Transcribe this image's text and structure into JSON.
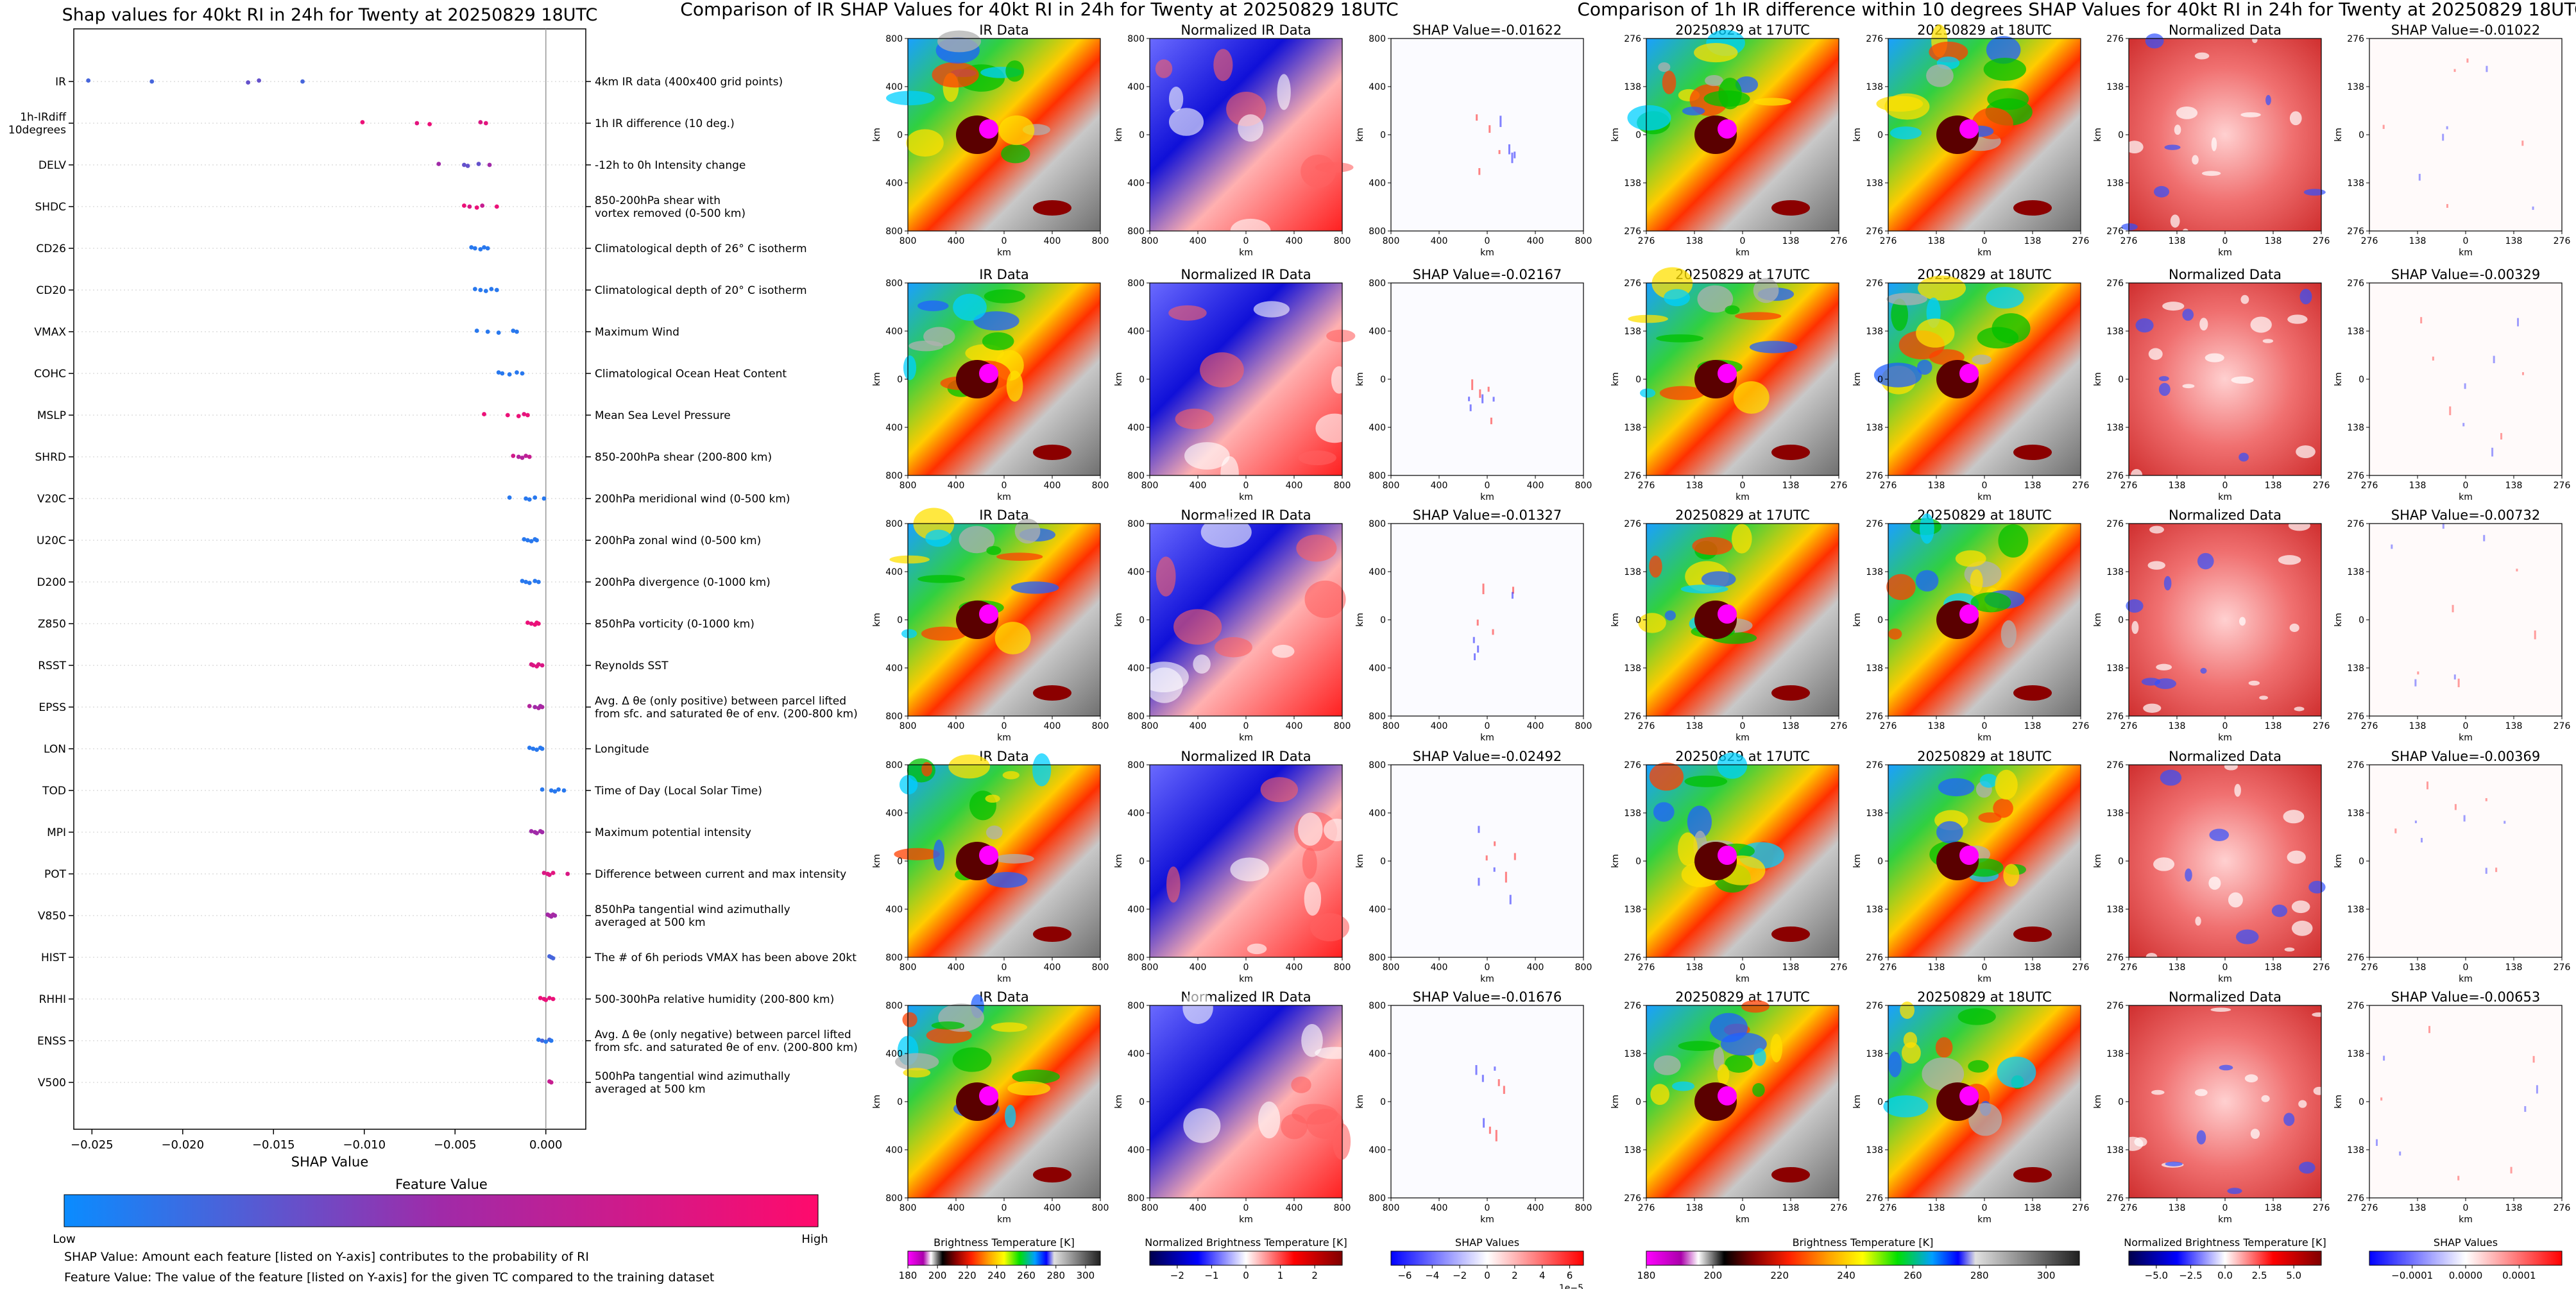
{
  "chart_data": [
    {
      "type": "scatter",
      "title": "Shap values for 40kt RI in 24h for Twenty at 20250829 18UTC",
      "xlabel": "SHAP Value",
      "xlim": [
        -0.026,
        0.0022
      ],
      "xticks": [
        -0.025,
        -0.02,
        -0.015,
        -0.01,
        -0.005,
        0.0
      ],
      "xtick_labels": [
        "−0.025",
        "−0.020",
        "−0.015",
        "−0.010",
        "−0.005",
        "0.000"
      ],
      "colorbar_title": "Feature Value",
      "colorbar_low": "Low",
      "colorbar_high": "High",
      "colors": {
        "low": "#0a8cff",
        "mid": "#a02aa8",
        "high": "#ff0a6c"
      },
      "features": [
        {
          "name": "IR",
          "desc": [
            "4km IR data (400x400 grid points)"
          ],
          "points": [
            [
              -0.0252,
              0.2
            ],
            [
              -0.0217,
              0.2
            ],
            [
              -0.0164,
              0.3
            ],
            [
              -0.0158,
              0.3
            ],
            [
              -0.0134,
              0.2
            ]
          ]
        },
        {
          "name": [
            "1h-IRdiff",
            "10degrees"
          ],
          "desc": [
            "1h IR difference (10 deg.)"
          ],
          "points": [
            [
              -0.0101,
              0.9
            ],
            [
              -0.0071,
              0.85
            ],
            [
              -0.0064,
              0.9
            ],
            [
              -0.0036,
              0.8
            ],
            [
              -0.0033,
              0.85
            ]
          ]
        },
        {
          "name": "DELV",
          "desc": [
            "-12h to 0h Intensity change"
          ],
          "points": [
            [
              -0.0059,
              0.5
            ],
            [
              -0.0045,
              0.3
            ],
            [
              -0.0043,
              0.3
            ],
            [
              -0.0037,
              0.3
            ],
            [
              -0.0031,
              0.5
            ]
          ]
        },
        {
          "name": "SHDC",
          "desc": [
            "850-200hPa shear with",
            "vortex removed (0-500 km)"
          ],
          "points": [
            [
              -0.0045,
              0.9
            ],
            [
              -0.0042,
              0.8
            ],
            [
              -0.0038,
              0.9
            ],
            [
              -0.0035,
              0.7
            ],
            [
              -0.0027,
              0.9
            ]
          ]
        },
        {
          "name": "CD26",
          "desc": [
            "Climatological depth of 26° C isotherm"
          ],
          "points": [
            [
              -0.0041,
              0.1
            ],
            [
              -0.0039,
              0.1
            ],
            [
              -0.0036,
              0.1
            ],
            [
              -0.0034,
              0.1
            ],
            [
              -0.0032,
              0.1
            ]
          ]
        },
        {
          "name": "CD20",
          "desc": [
            "Climatological depth of 20° C isotherm"
          ],
          "points": [
            [
              -0.0039,
              0.1
            ],
            [
              -0.0036,
              0.1
            ],
            [
              -0.0033,
              0.1
            ],
            [
              -0.003,
              0.1
            ],
            [
              -0.0027,
              0.1
            ]
          ]
        },
        {
          "name": "VMAX",
          "desc": [
            "Maximum Wind"
          ],
          "points": [
            [
              -0.0038,
              0.1
            ],
            [
              -0.0032,
              0.1
            ],
            [
              -0.0026,
              0.1
            ],
            [
              -0.0018,
              0.1
            ],
            [
              -0.0016,
              0.1
            ]
          ]
        },
        {
          "name": "COHC",
          "desc": [
            "Climatological Ocean Heat Content"
          ],
          "points": [
            [
              -0.0026,
              0.1
            ],
            [
              -0.0024,
              0.1
            ],
            [
              -0.002,
              0.1
            ],
            [
              -0.0016,
              0.1
            ],
            [
              -0.0013,
              0.1
            ]
          ]
        },
        {
          "name": "MSLP",
          "desc": [
            "Mean Sea Level Pressure"
          ],
          "points": [
            [
              -0.0034,
              0.9
            ],
            [
              -0.0021,
              0.9
            ],
            [
              -0.0015,
              0.9
            ],
            [
              -0.0012,
              0.85
            ],
            [
              -0.001,
              0.9
            ]
          ]
        },
        {
          "name": "SHRD",
          "desc": [
            "850-200hPa shear (200-800 km)"
          ],
          "points": [
            [
              -0.0018,
              0.75
            ],
            [
              -0.0015,
              0.6
            ],
            [
              -0.0013,
              0.6
            ],
            [
              -0.0011,
              0.65
            ],
            [
              -0.0009,
              0.7
            ]
          ]
        },
        {
          "name": "V20C",
          "desc": [
            "200hPa meridional wind (0-500 km)"
          ],
          "points": [
            [
              -0.002,
              0.1
            ],
            [
              -0.0011,
              0.1
            ],
            [
              -0.0009,
              0.1
            ],
            [
              -0.0006,
              0.1
            ],
            [
              -0.0001,
              0.1
            ]
          ]
        },
        {
          "name": "U20C",
          "desc": [
            "200hPa zonal wind (0-500 km)"
          ],
          "points": [
            [
              -0.0012,
              0.1
            ],
            [
              -0.001,
              0.1
            ],
            [
              -0.0008,
              0.1
            ],
            [
              -0.0006,
              0.1
            ],
            [
              -0.0005,
              0.1
            ]
          ]
        },
        {
          "name": "D200",
          "desc": [
            "200hPa divergence (0-1000 km)"
          ],
          "points": [
            [
              -0.0013,
              0.1
            ],
            [
              -0.0011,
              0.1
            ],
            [
              -0.0009,
              0.1
            ],
            [
              -0.0006,
              0.1
            ],
            [
              -0.0004,
              0.1
            ]
          ]
        },
        {
          "name": "Z850",
          "desc": [
            "850hPa vorticity (0-1000 km)"
          ],
          "points": [
            [
              -0.001,
              0.9
            ],
            [
              -0.0008,
              0.85
            ],
            [
              -0.0006,
              0.9
            ],
            [
              -0.0005,
              0.9
            ],
            [
              -0.0004,
              0.9
            ]
          ]
        },
        {
          "name": "RSST",
          "desc": [
            "Reynolds SST"
          ],
          "points": [
            [
              -0.0008,
              0.8
            ],
            [
              -0.0007,
              0.8
            ],
            [
              -0.0005,
              0.85
            ],
            [
              -0.0004,
              0.8
            ],
            [
              -0.0002,
              0.8
            ]
          ]
        },
        {
          "name": "EPSS",
          "desc": [
            "Avg. Δ θe (only positive) between parcel lifted",
            "from sfc. and saturated θe of env. (200-800 km)"
          ],
          "points": [
            [
              -0.0009,
              0.6
            ],
            [
              -0.0006,
              0.5
            ],
            [
              -0.0004,
              0.55
            ],
            [
              -0.0003,
              0.5
            ],
            [
              -0.0002,
              0.55
            ]
          ]
        },
        {
          "name": "LON",
          "desc": [
            "Longitude"
          ],
          "points": [
            [
              -0.0009,
              0.1
            ],
            [
              -0.0007,
              0.1
            ],
            [
              -0.0005,
              0.1
            ],
            [
              -0.0003,
              0.1
            ],
            [
              -0.0002,
              0.1
            ]
          ]
        },
        {
          "name": "TOD",
          "desc": [
            "Time of Day (Local Solar Time)"
          ],
          "points": [
            [
              -0.0002,
              0.1
            ],
            [
              0.0003,
              0.1
            ],
            [
              0.0005,
              0.1
            ],
            [
              0.0007,
              0.1
            ],
            [
              0.001,
              0.1
            ]
          ]
        },
        {
          "name": "MPI",
          "desc": [
            "Maximum potential intensity"
          ],
          "points": [
            [
              -0.0008,
              0.5
            ],
            [
              -0.0006,
              0.5
            ],
            [
              -0.0005,
              0.5
            ],
            [
              -0.0003,
              0.5
            ],
            [
              -0.0002,
              0.5
            ]
          ]
        },
        {
          "name": "POT",
          "desc": [
            "Difference between current and max intensity"
          ],
          "points": [
            [
              -0.0001,
              0.8
            ],
            [
              0.0001,
              0.85
            ],
            [
              0.0002,
              0.8
            ],
            [
              0.0004,
              0.85
            ],
            [
              0.0012,
              0.8
            ]
          ]
        },
        {
          "name": "V850",
          "desc": [
            "850hPa tangential wind azimuthally",
            "averaged at 500 km"
          ],
          "points": [
            [
              0.0001,
              0.5
            ],
            [
              0.0002,
              0.55
            ],
            [
              0.0003,
              0.5
            ],
            [
              0.0004,
              0.55
            ],
            [
              0.0005,
              0.5
            ]
          ]
        },
        {
          "name": "HIST",
          "desc": [
            "The # of 6h periods VMAX has been above 20kt"
          ],
          "points": [
            [
              0.0002,
              0.2
            ],
            [
              0.0003,
              0.2
            ],
            [
              0.0004,
              0.2
            ]
          ]
        },
        {
          "name": "RHHI",
          "desc": [
            "500-300hPa relative humidity (200-800 km)"
          ],
          "points": [
            [
              -0.0003,
              0.9
            ],
            [
              -0.0001,
              0.85
            ],
            [
              0.0,
              0.9
            ],
            [
              0.0002,
              0.85
            ],
            [
              0.0004,
              0.9
            ]
          ]
        },
        {
          "name": "ENSS",
          "desc": [
            "Avg. Δ θe (only negative) between parcel lifted",
            "from sfc. and saturated θe of env. (200-800 km)"
          ],
          "points": [
            [
              -0.0004,
              0.1
            ],
            [
              -0.0002,
              0.2
            ],
            [
              0.0,
              0.1
            ],
            [
              0.0002,
              0.2
            ],
            [
              0.0003,
              0.1
            ]
          ]
        },
        {
          "name": "V500",
          "desc": [
            "500hPa tangential wind azimuthally",
            "averaged at 500 km"
          ],
          "points": [
            [
              0.0002,
              0.7
            ],
            [
              0.0003,
              0.7
            ]
          ]
        }
      ],
      "notes": [
        "SHAP Value: Amount each feature [listed on Y-axis] contributes to the probability of RI",
        "Feature Value: The value of the feature [listed on Y-axis] for the given TC compared to the training dataset"
      ]
    },
    {
      "type": "heatmap",
      "title": "Comparison of IR SHAP Values for 40kt RI in 24h for Twenty at 20250829 18UTC",
      "axis_label": "km",
      "ticks": [
        "800",
        "400",
        "0",
        "400",
        "800"
      ],
      "column_titles": [
        "IR Data",
        "Normalized IR Data"
      ],
      "shap_titles": [
        "SHAP Value=-0.01622",
        "SHAP Value=-0.02167",
        "SHAP Value=-0.01327",
        "SHAP Value=-0.02492",
        "SHAP Value=-0.01676"
      ],
      "colorbars": [
        {
          "label": "Brightness Temperature [K]",
          "ticks": [
            "180",
            "200",
            "220",
            "240",
            "260",
            "280",
            "300"
          ],
          "range": [
            180,
            310
          ]
        },
        {
          "label": "Normalized Brightness Temperature [K]",
          "ticks": [
            "−2",
            "−1",
            "0",
            "1",
            "2"
          ],
          "range": [
            -2.8,
            2.8
          ]
        },
        {
          "label": "SHAP Values",
          "ticks": [
            "−6",
            "−4",
            "−2",
            "0",
            "2",
            "4",
            "6"
          ],
          "range": [
            -7,
            7
          ],
          "multiplier": "1e−5"
        }
      ]
    },
    {
      "type": "heatmap",
      "title": "Comparison of 1h IR difference within 10 degrees SHAP Values for 40kt RI in 24h for Twenty at 20250829 18UTC",
      "axis_label": "km",
      "ticks": [
        "276",
        "138",
        "0",
        "138",
        "276"
      ],
      "column_titles": [
        "20250829 at 17UTC",
        "20250829 at 18UTC",
        "Normalized Data"
      ],
      "shap_titles": [
        "SHAP Value=-0.01022",
        "SHAP Value=-0.00329",
        "SHAP Value=-0.00732",
        "SHAP Value=-0.00369",
        "SHAP Value=-0.00653"
      ],
      "colorbars": [
        {
          "label": "Brightness Temperature [K]",
          "ticks": [
            "180",
            "200",
            "220",
            "240",
            "260",
            "280",
            "300"
          ],
          "range": [
            180,
            310
          ]
        },
        {
          "label": "Normalized Brightness Temperature [K]",
          "ticks": [
            "−5.0",
            "−2.5",
            "0.0",
            "2.5",
            "5.0"
          ],
          "range": [
            -7,
            7
          ]
        },
        {
          "label": "SHAP Values",
          "ticks": [
            "−0.0001",
            "0.0000",
            "0.0001"
          ],
          "range": [
            -0.00018,
            0.00018
          ]
        }
      ]
    }
  ]
}
